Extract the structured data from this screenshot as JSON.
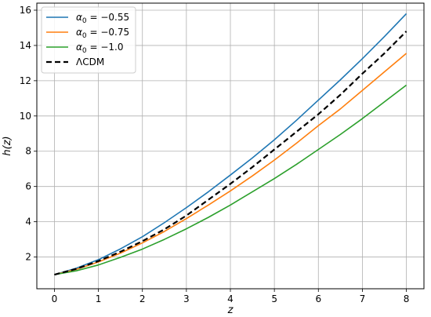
{
  "chart_data": {
    "type": "line",
    "xlabel": "z",
    "ylabel": "h(z)",
    "xlim": [
      -0.4,
      8.4
    ],
    "ylim": [
      0.2,
      16.4
    ],
    "xticks": [
      0,
      1,
      2,
      3,
      4,
      5,
      6,
      7,
      8
    ],
    "yticks": [
      2,
      4,
      6,
      8,
      10,
      12,
      14,
      16
    ],
    "grid": true,
    "legend_position": "top-left",
    "x": [
      0,
      0.5,
      1,
      1.5,
      2,
      2.5,
      3,
      3.5,
      4,
      4.5,
      5,
      5.5,
      6,
      6.5,
      7,
      7.5,
      8
    ],
    "series": [
      {
        "name": "α₀ = −0.55",
        "label_prefix": "α",
        "label_sub": "0",
        "label_suffix": " = −0.55",
        "color": "#1f77b4",
        "dash": "solid",
        "values": [
          1.0,
          1.37,
          1.85,
          2.46,
          3.15,
          3.95,
          4.8,
          5.7,
          6.65,
          7.62,
          8.65,
          9.75,
          10.9,
          12.05,
          13.25,
          14.5,
          15.8
        ]
      },
      {
        "name": "α₀ = −0.75",
        "label_prefix": "α",
        "label_sub": "0",
        "label_suffix": " = −0.75",
        "color": "#ff7f0e",
        "dash": "solid",
        "values": [
          1.0,
          1.3,
          1.72,
          2.22,
          2.8,
          3.45,
          4.18,
          4.95,
          5.75,
          6.6,
          7.5,
          8.45,
          9.45,
          10.4,
          11.45,
          12.5,
          13.55
        ]
      },
      {
        "name": "α₀ = −1.0",
        "label_prefix": "α",
        "label_sub": "0",
        "label_suffix": " = −1.0",
        "color": "#2ca02c",
        "dash": "solid",
        "values": [
          1.0,
          1.22,
          1.55,
          1.98,
          2.45,
          3.0,
          3.6,
          4.25,
          4.95,
          5.7,
          6.45,
          7.25,
          8.1,
          8.95,
          9.85,
          10.8,
          11.75
        ]
      },
      {
        "name": "ΛCDM",
        "label_prefix": "ΛCDM",
        "label_sub": "",
        "label_suffix": "",
        "color": "#000000",
        "dash": "dashed",
        "values": [
          1.0,
          1.33,
          1.77,
          2.3,
          2.9,
          3.57,
          4.35,
          5.25,
          6.15,
          7.1,
          8.1,
          9.1,
          10.1,
          11.2,
          12.4,
          13.55,
          14.8
        ]
      }
    ]
  }
}
